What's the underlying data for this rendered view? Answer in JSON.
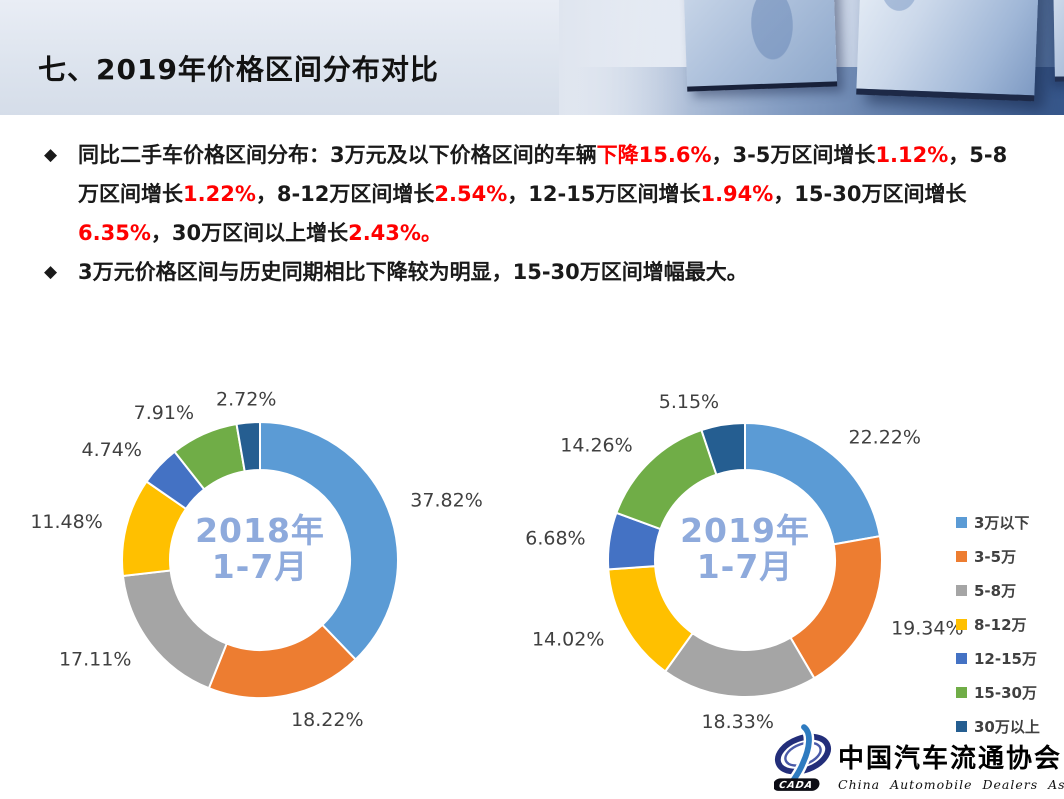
{
  "header": {
    "title": "七、2019年价格区间分布对比"
  },
  "bullets": {
    "marker": "◆",
    "items": [
      {
        "segments": [
          {
            "text": "同比二手车价格区间分布：3万元及以下价格区间的车辆",
            "color": "default"
          },
          {
            "text": "下降15.6%",
            "color": "red"
          },
          {
            "text": "，3-5万区间增长",
            "color": "default"
          },
          {
            "text": "1.12%",
            "color": "red"
          },
          {
            "text": "，5-8万区间增长",
            "color": "default"
          },
          {
            "text": "1.22%",
            "color": "red"
          },
          {
            "text": "，8-12万区间增长",
            "color": "default"
          },
          {
            "text": "2.54%",
            "color": "red"
          },
          {
            "text": "，12-15万区间增长",
            "color": "default"
          },
          {
            "text": "1.94%",
            "color": "red"
          },
          {
            "text": "，15-30万区间增长",
            "color": "default"
          },
          {
            "text": "6.35%",
            "color": "red"
          },
          {
            "text": "，30万区间以上增长",
            "color": "default"
          },
          {
            "text": "2.43%。",
            "color": "red"
          }
        ]
      },
      {
        "segments": [
          {
            "text": "3万元价格区间与历史同期相比下降较为明显，15-30万区间增幅最大。",
            "color": "default"
          }
        ]
      }
    ]
  },
  "chart_data": [
    {
      "type": "pie",
      "subtype": "donut",
      "title": "2018年 1-7月",
      "center_lines": [
        "2018年",
        "1-7月"
      ],
      "categories": [
        "3万以下",
        "3-5万",
        "5-8万",
        "8-12万",
        "12-15万",
        "15-30万",
        "30万以上"
      ],
      "values": [
        37.82,
        18.22,
        17.11,
        11.48,
        4.74,
        7.91,
        2.72
      ],
      "labels": [
        "37.82%",
        "18.22%",
        "17.11%",
        "11.48%",
        "4.74%",
        "7.91%",
        "2.72%"
      ],
      "colors": [
        "#5B9BD5",
        "#ED7D31",
        "#A5A5A5",
        "#FFC000",
        "#4472C4",
        "#70AD47",
        "#255E91"
      ],
      "label_color": "#404040",
      "center_color": "#8EAADC",
      "legend_position": "right"
    },
    {
      "type": "pie",
      "subtype": "donut",
      "title": "2019年 1-7月",
      "center_lines": [
        "2019年",
        "1-7月"
      ],
      "categories": [
        "3万以下",
        "3-5万",
        "5-8万",
        "8-12万",
        "12-15万",
        "15-30万",
        "30万以上"
      ],
      "values": [
        22.22,
        19.34,
        18.33,
        14.02,
        6.68,
        14.26,
        5.15
      ],
      "labels": [
        "22.22%",
        "19.34%",
        "18.33%",
        "14.02%",
        "6.68%",
        "14.26%",
        "5.15%"
      ],
      "colors": [
        "#5B9BD5",
        "#ED7D31",
        "#A5A5A5",
        "#FFC000",
        "#4472C4",
        "#70AD47",
        "#255E91"
      ],
      "label_color": "#404040",
      "center_color": "#8EAADC",
      "legend_position": "right"
    }
  ],
  "logo": {
    "badge": "CADA",
    "cn": "中国汽车流通协会",
    "en": "China Automobile Dealers Association"
  }
}
